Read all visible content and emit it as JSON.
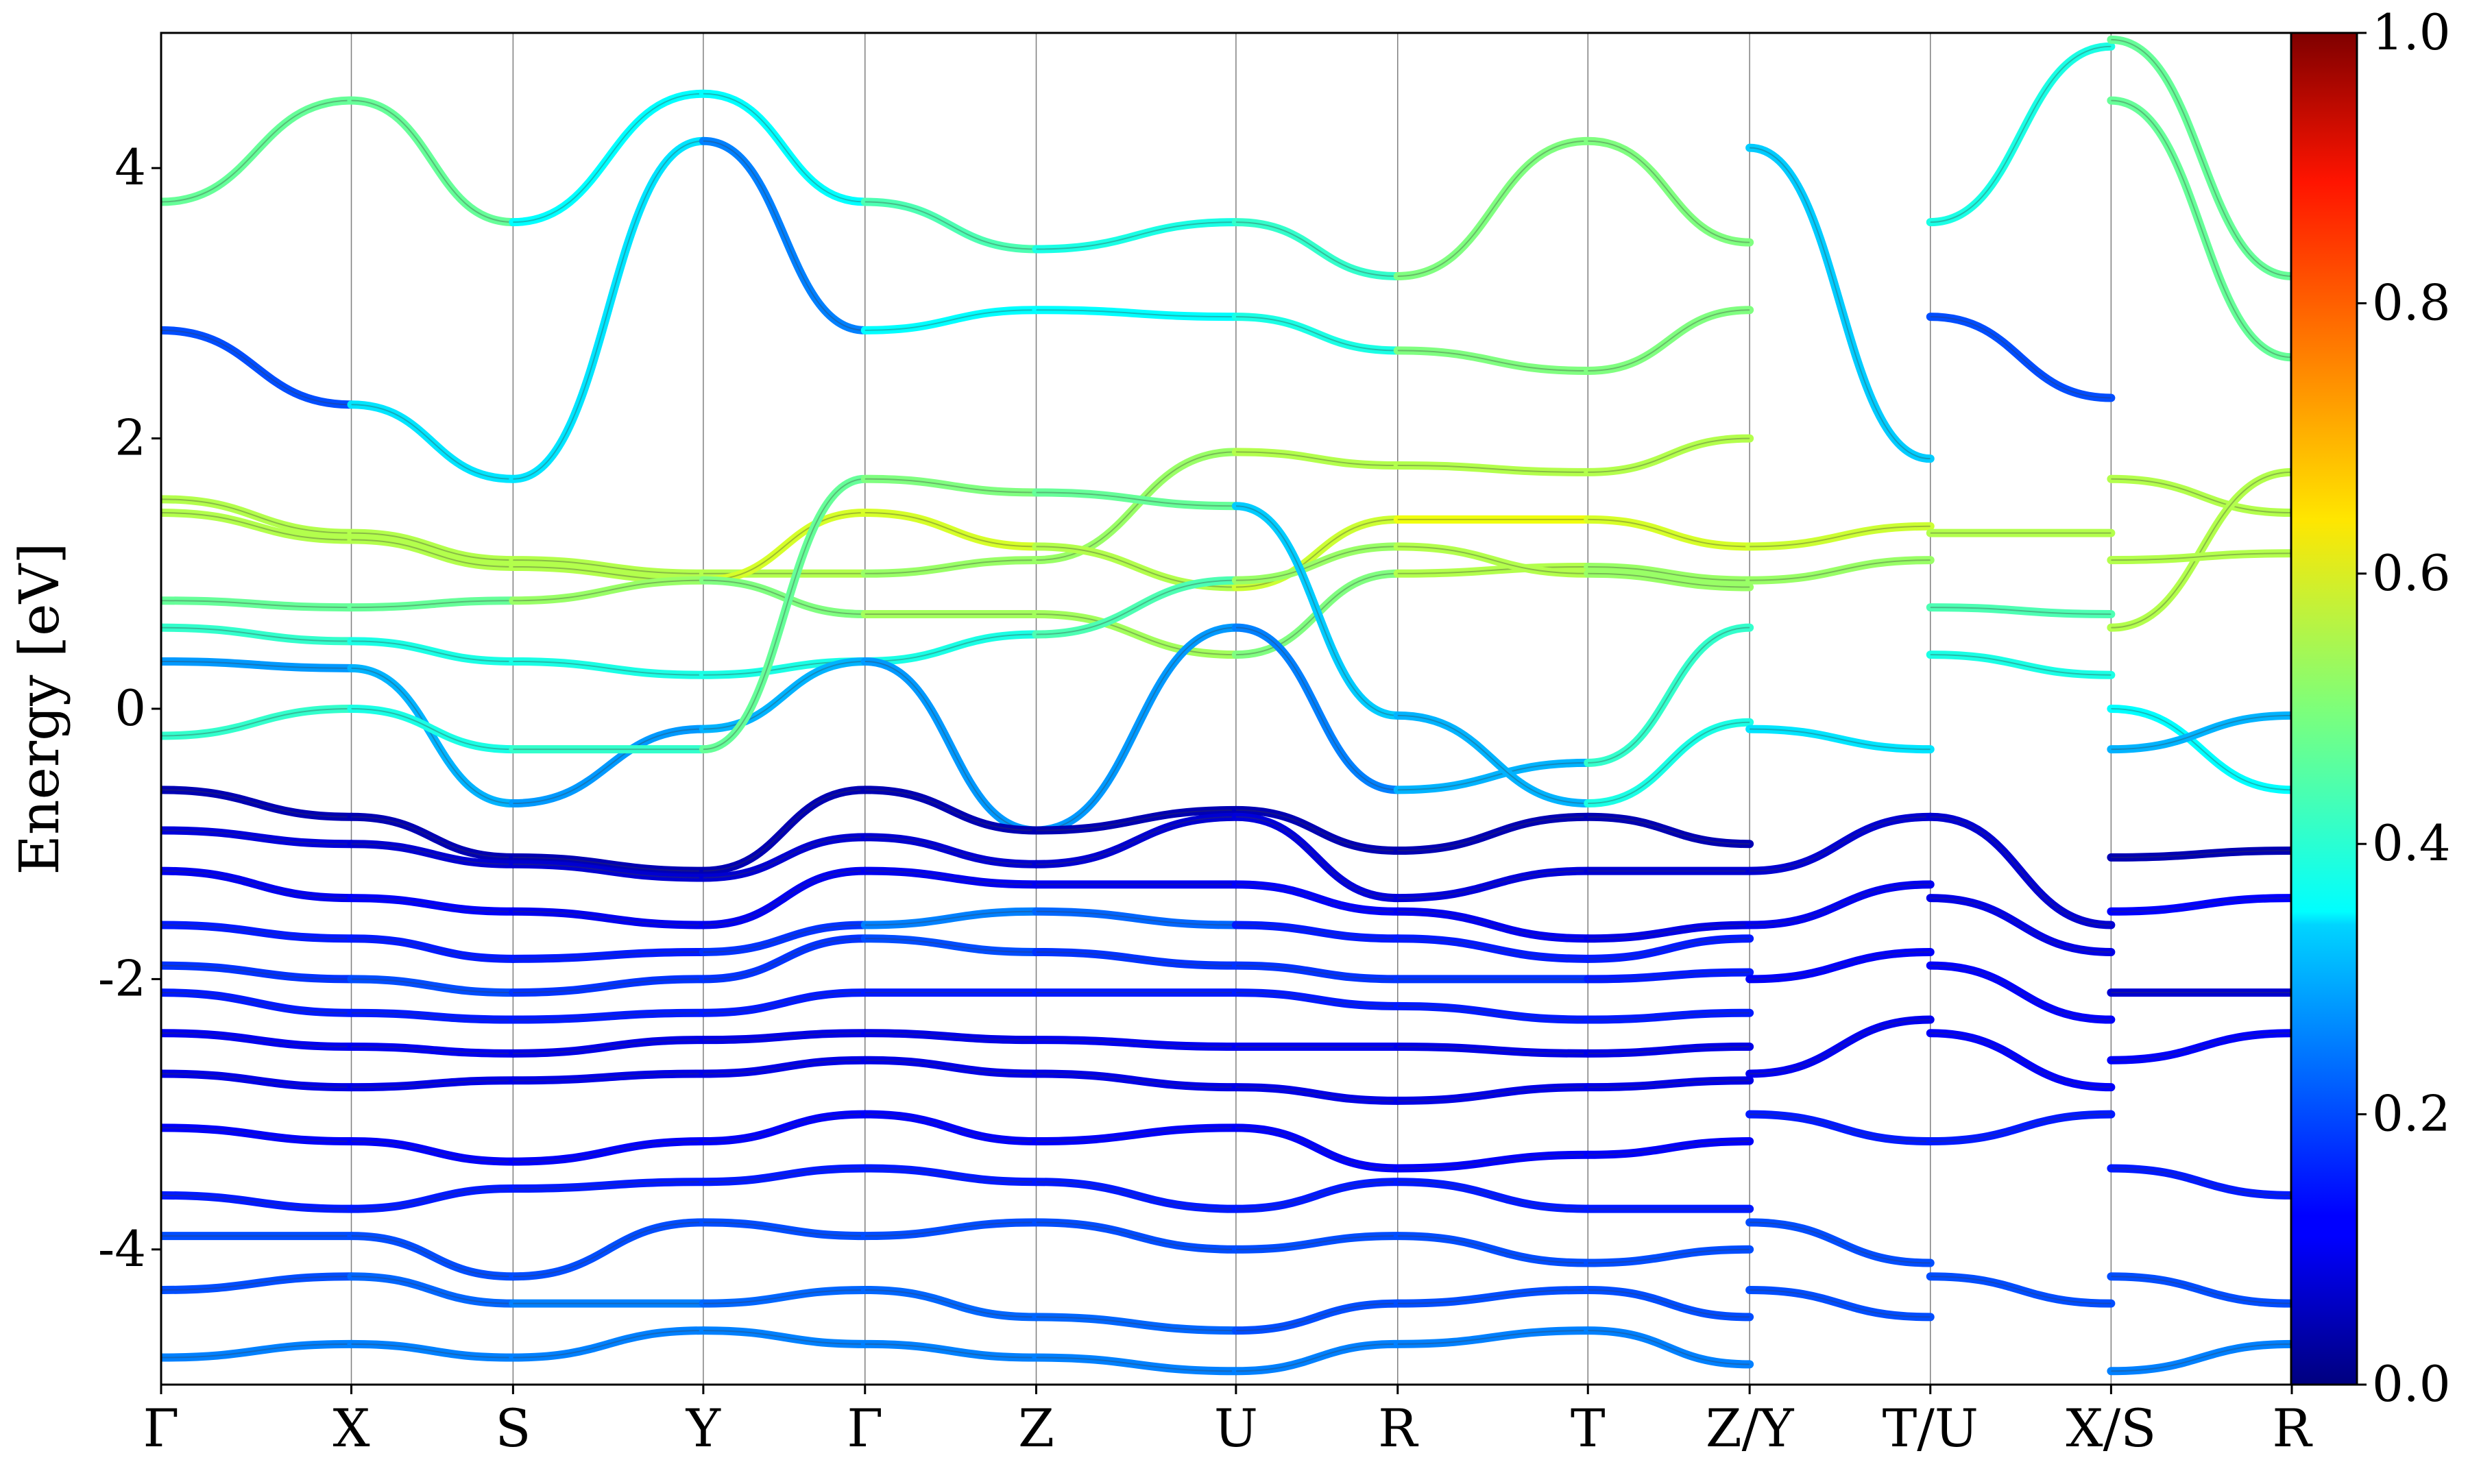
{
  "chart_data": {
    "type": "line",
    "title": "",
    "xlabel": "",
    "ylabel": "Energy [eV]",
    "ylim": [
      -5,
      5
    ],
    "y_ticks": [
      -4,
      -2,
      0,
      2,
      4
    ],
    "y_tick_labels": [
      "-4",
      "-2",
      "0",
      "2",
      "4"
    ],
    "k_points": [
      {
        "label": "Γ",
        "x": 0.0
      },
      {
        "label": "X",
        "x": 1.0
      },
      {
        "label": "S",
        "x": 1.85
      },
      {
        "label": "Y",
        "x": 2.85
      },
      {
        "label": "Γ",
        "x": 3.7
      },
      {
        "label": "Z",
        "x": 4.6
      },
      {
        "label": "U",
        "x": 5.65
      },
      {
        "label": "R",
        "x": 6.5
      },
      {
        "label": "T",
        "x": 7.5
      },
      {
        "label": "Z/Y",
        "x": 8.35
      },
      {
        "label": "T/U",
        "x": 9.3
      },
      {
        "label": "X/S",
        "x": 10.25
      },
      {
        "label": "R",
        "x": 11.2
      }
    ],
    "discontinuities": [
      8.35,
      9.3,
      10.25
    ],
    "colorbar": {
      "min": 0.0,
      "max": 1.0,
      "ticks": [
        0.0,
        0.2,
        0.4,
        0.6,
        0.8,
        1.0
      ],
      "tick_labels": [
        "0.0",
        "0.2",
        "0.4",
        "0.6",
        "0.8",
        "1.0"
      ],
      "colormap": "jet"
    },
    "grid": false,
    "band_width_note": "",
    "series": [
      {
        "x": [
          0,
          1,
          1.85,
          2.85,
          3.7,
          4.6,
          5.65,
          6.5,
          7.5,
          8.35
        ],
        "y": [
          1.55,
          1.3,
          1.1,
          1.0,
          1.0,
          1.1,
          1.9,
          1.8,
          1.75,
          2.0
        ],
        "w": [
          0.55,
          0.55,
          0.55,
          0.55,
          0.55,
          0.5,
          0.55,
          0.55,
          0.55,
          0.55
        ]
      },
      {
        "x": [
          0,
          1,
          1.85,
          2.85,
          3.7,
          4.6,
          5.65,
          6.5,
          7.5,
          8.35
        ],
        "y": [
          1.45,
          1.25,
          1.05,
          0.95,
          1.45,
          1.2,
          0.9,
          1.4,
          1.4,
          1.2
        ],
        "w": [
          0.55,
          0.55,
          0.55,
          0.55,
          0.62,
          0.55,
          0.55,
          0.6,
          0.62,
          0.55
        ]
      },
      {
        "x": [
          0,
          1,
          1.85,
          2.85,
          3.7,
          4.6,
          5.65,
          6.5,
          7.5,
          8.35
        ],
        "y": [
          0.8,
          0.75,
          0.8,
          0.95,
          0.7,
          0.7,
          0.4,
          1.0,
          1.05,
          0.95
        ],
        "w": [
          0.5,
          0.45,
          0.5,
          0.55,
          0.45,
          0.62,
          0.45,
          0.55,
          0.55,
          0.5
        ]
      },
      {
        "x": [
          0,
          1,
          1.85,
          2.85,
          3.7,
          4.6,
          5.65,
          6.5,
          7.5,
          8.35
        ],
        "y": [
          0.6,
          0.5,
          0.35,
          0.25,
          0.35,
          0.55,
          0.95,
          1.2,
          1.0,
          0.9
        ],
        "w": [
          0.45,
          0.4,
          0.4,
          0.4,
          0.4,
          0.4,
          0.5,
          0.55,
          0.55,
          0.5
        ]
      },
      {
        "x": [
          0,
          1,
          1.85,
          2.85,
          3.7,
          4.6,
          5.65,
          6.5,
          7.5,
          8.35
        ],
        "y": [
          0.35,
          0.3,
          -0.7,
          -0.15,
          0.35,
          -0.9,
          0.6,
          -0.6,
          -0.4,
          0.6
        ],
        "w": [
          0.2,
          0.35,
          0.25,
          0.3,
          0.3,
          0.25,
          0.3,
          0.2,
          0.4,
          0.45
        ]
      },
      {
        "x": [
          0,
          1,
          1.85,
          2.85,
          3.7,
          4.6,
          5.65,
          6.5,
          7.5,
          8.35
        ],
        "y": [
          -0.2,
          0.0,
          -0.3,
          -0.3,
          1.7,
          1.6,
          1.5,
          -0.05,
          -0.7,
          -0.1
        ],
        "w": [
          0.45,
          0.4,
          0.4,
          0.45,
          0.5,
          0.5,
          0.45,
          0.2,
          0.4,
          0.4
        ]
      },
      {
        "x": [
          0,
          1,
          1.85,
          2.85,
          3.7,
          4.6,
          5.65,
          6.5,
          7.5,
          8.35
        ],
        "y": [
          -0.6,
          -0.8,
          -1.1,
          -1.2,
          -0.6,
          -0.9,
          -0.75,
          -1.05,
          -0.8,
          -1.0
        ],
        "w": [
          0.05,
          0.05,
          0.05,
          0.05,
          0.05,
          0.05,
          0.05,
          0.05,
          0.05,
          0.05
        ]
      },
      {
        "x": [
          0,
          1,
          1.85,
          2.85,
          3.7,
          4.6,
          5.65,
          6.5,
          7.5,
          8.35
        ],
        "y": [
          -0.9,
          -1.0,
          -1.15,
          -1.25,
          -0.95,
          -1.15,
          -0.8,
          -1.4,
          -1.2,
          -1.2
        ],
        "w": [
          0.1,
          0.08,
          0.08,
          0.08,
          0.08,
          0.08,
          0.08,
          0.1,
          0.08,
          0.08
        ]
      },
      {
        "x": [
          0,
          1,
          1.85,
          2.85,
          3.7,
          4.6,
          5.65,
          6.5,
          7.5,
          8.35
        ],
        "y": [
          -1.2,
          -1.4,
          -1.5,
          -1.6,
          -1.2,
          -1.3,
          -1.3,
          -1.5,
          -1.7,
          -1.6
        ],
        "w": [
          0.1,
          0.12,
          0.12,
          0.1,
          0.12,
          0.1,
          0.12,
          0.12,
          0.1,
          0.1
        ]
      },
      {
        "x": [
          0,
          1,
          1.85,
          2.85,
          3.7,
          4.6,
          5.65,
          6.5,
          7.5,
          8.35
        ],
        "y": [
          -1.6,
          -1.7,
          -1.85,
          -1.8,
          -1.6,
          -1.5,
          -1.6,
          -1.7,
          -1.85,
          -1.7
        ],
        "w": [
          0.15,
          0.15,
          0.15,
          0.15,
          0.2,
          0.3,
          0.15,
          0.15,
          0.15,
          0.15
        ]
      },
      {
        "x": [
          0,
          1,
          1.85,
          2.85,
          3.7,
          4.6,
          5.65,
          6.5,
          7.5,
          8.35
        ],
        "y": [
          -1.9,
          -2.0,
          -2.1,
          -2.0,
          -1.7,
          -1.8,
          -1.9,
          -2.0,
          -2.0,
          -1.95
        ],
        "w": [
          0.15,
          0.2,
          0.2,
          0.15,
          0.2,
          0.2,
          0.15,
          0.2,
          0.15,
          0.15
        ]
      },
      {
        "x": [
          0,
          1,
          1.85,
          2.85,
          3.7,
          4.6,
          5.65,
          6.5,
          7.5,
          8.35
        ],
        "y": [
          -2.1,
          -2.25,
          -2.3,
          -2.25,
          -2.1,
          -2.1,
          -2.1,
          -2.2,
          -2.3,
          -2.25
        ],
        "w": [
          0.15,
          0.15,
          0.15,
          0.15,
          0.15,
          0.15,
          0.15,
          0.15,
          0.15,
          0.15
        ]
      },
      {
        "x": [
          0,
          1,
          1.85,
          2.85,
          3.7,
          4.6,
          5.65,
          6.5,
          7.5,
          8.35
        ],
        "y": [
          -2.4,
          -2.5,
          -2.55,
          -2.45,
          -2.4,
          -2.45,
          -2.5,
          -2.5,
          -2.55,
          -2.5
        ],
        "w": [
          0.1,
          0.12,
          0.1,
          0.1,
          0.1,
          0.1,
          0.12,
          0.1,
          0.1,
          0.1
        ]
      },
      {
        "x": [
          0,
          1,
          1.85,
          2.85,
          3.7,
          4.6,
          5.65,
          6.5,
          7.5,
          8.35
        ],
        "y": [
          -2.7,
          -2.8,
          -2.75,
          -2.7,
          -2.6,
          -2.7,
          -2.8,
          -2.9,
          -2.8,
          -2.75
        ],
        "w": [
          0.1,
          0.1,
          0.1,
          0.1,
          0.1,
          0.1,
          0.1,
          0.1,
          0.1,
          0.1
        ]
      },
      {
        "x": [
          0,
          1,
          1.85,
          2.85,
          3.7,
          4.6,
          5.65,
          6.5,
          7.5,
          8.35
        ],
        "y": [
          -3.1,
          -3.2,
          -3.35,
          -3.2,
          -3.0,
          -3.2,
          -3.1,
          -3.4,
          -3.3,
          -3.2
        ],
        "w": [
          0.12,
          0.12,
          0.12,
          0.12,
          0.12,
          0.12,
          0.12,
          0.12,
          0.12,
          0.12
        ]
      },
      {
        "x": [
          0,
          1,
          1.85,
          2.85,
          3.7,
          4.6,
          5.65,
          6.5,
          7.5,
          8.35
        ],
        "y": [
          -3.6,
          -3.7,
          -3.55,
          -3.5,
          -3.4,
          -3.5,
          -3.7,
          -3.5,
          -3.7,
          -3.7
        ],
        "w": [
          0.15,
          0.15,
          0.15,
          0.15,
          0.15,
          0.15,
          0.15,
          0.15,
          0.15,
          0.15
        ]
      },
      {
        "x": [
          0,
          1,
          1.85,
          2.85,
          3.7,
          4.6,
          5.65,
          6.5,
          7.5,
          8.35
        ],
        "y": [
          -3.9,
          -3.9,
          -4.2,
          -3.8,
          -3.9,
          -3.8,
          -4.0,
          -3.9,
          -4.1,
          -4.0
        ],
        "w": [
          0.2,
          0.2,
          0.2,
          0.2,
          0.2,
          0.2,
          0.2,
          0.2,
          0.2,
          0.2
        ]
      },
      {
        "x": [
          0,
          1,
          1.85,
          2.85,
          3.7,
          4.6,
          5.65,
          6.5,
          7.5,
          8.35
        ],
        "y": [
          -4.3,
          -4.2,
          -4.4,
          -4.4,
          -4.3,
          -4.5,
          -4.6,
          -4.4,
          -4.3,
          -4.5
        ],
        "w": [
          0.2,
          0.2,
          0.25,
          0.25,
          0.2,
          0.25,
          0.2,
          0.2,
          0.2,
          0.2
        ]
      },
      {
        "x": [
          0,
          1,
          1.85,
          2.85,
          3.7,
          4.6,
          5.65,
          6.5,
          7.5,
          8.35
        ],
        "y": [
          -4.8,
          -4.7,
          -4.8,
          -4.6,
          -4.7,
          -4.8,
          -4.9,
          -4.7,
          -4.6,
          -4.85
        ],
        "w": [
          0.25,
          0.25,
          0.25,
          0.25,
          0.25,
          0.25,
          0.25,
          0.25,
          0.25,
          0.25
        ]
      },
      {
        "x": [
          0,
          1,
          1.85,
          2.85,
          3.7,
          4.6,
          5.65,
          6.5,
          7.5,
          8.35
        ],
        "y": [
          2.8,
          2.25,
          1.7,
          4.2,
          2.8,
          2.95,
          2.9,
          2.65,
          2.5,
          2.95
        ],
        "w": [
          0.2,
          0.2,
          0.5,
          0.2,
          0.3,
          0.45,
          0.3,
          0.5,
          0.5,
          0.5
        ]
      },
      {
        "x": [
          0,
          1,
          1.85,
          2.85,
          3.7,
          4.6,
          5.65,
          6.5,
          7.5,
          8.35
        ],
        "y": [
          3.75,
          4.5,
          3.6,
          4.55,
          3.75,
          3.4,
          3.6,
          3.2,
          4.2,
          3.45
        ],
        "w": [
          0.45,
          0.5,
          0.45,
          0.3,
          0.45,
          0.45,
          0.35,
          0.5,
          0.5,
          0.5
        ]
      },
      {
        "x": [
          8.35,
          9.3
        ],
        "y": [
          4.15,
          1.85
        ],
        "w": [
          0.15,
          0.5
        ]
      },
      {
        "x": [
          8.35,
          9.3
        ],
        "y": [
          1.2,
          1.35
        ],
        "w": [
          0.55,
          0.6
        ]
      },
      {
        "x": [
          8.35,
          9.3
        ],
        "y": [
          0.95,
          1.1
        ],
        "w": [
          0.5,
          0.55
        ]
      },
      {
        "x": [
          8.35,
          9.3
        ],
        "y": [
          -0.15,
          -0.3
        ],
        "w": [
          0.4,
          0.3
        ]
      },
      {
        "x": [
          8.35,
          9.3
        ],
        "y": [
          -1.2,
          -0.8
        ],
        "w": [
          0.08,
          0.08
        ]
      },
      {
        "x": [
          8.35,
          9.3
        ],
        "y": [
          -1.6,
          -1.3
        ],
        "w": [
          0.12,
          0.1
        ]
      },
      {
        "x": [
          8.35,
          9.3
        ],
        "y": [
          -2.0,
          -1.8
        ],
        "w": [
          0.12,
          0.12
        ]
      },
      {
        "x": [
          8.35,
          9.3
        ],
        "y": [
          -2.7,
          -2.3
        ],
        "w": [
          0.1,
          0.12
        ]
      },
      {
        "x": [
          8.35,
          9.3
        ],
        "y": [
          -3.0,
          -3.2
        ],
        "w": [
          0.15,
          0.15
        ]
      },
      {
        "x": [
          8.35,
          9.3
        ],
        "y": [
          -3.8,
          -4.1
        ],
        "w": [
          0.2,
          0.2
        ]
      },
      {
        "x": [
          8.35,
          9.3
        ],
        "y": [
          -4.3,
          -4.5
        ],
        "w": [
          0.2,
          0.2
        ]
      },
      {
        "x": [
          9.3,
          10.25
        ],
        "y": [
          3.6,
          4.9
        ],
        "w": [
          0.4,
          0.4
        ]
      },
      {
        "x": [
          9.3,
          10.25
        ],
        "y": [
          2.9,
          2.3
        ],
        "w": [
          0.2,
          0.2
        ]
      },
      {
        "x": [
          9.3,
          10.25
        ],
        "y": [
          1.3,
          1.3
        ],
        "w": [
          0.55,
          0.55
        ]
      },
      {
        "x": [
          9.3,
          10.25
        ],
        "y": [
          0.75,
          0.7
        ],
        "w": [
          0.45,
          0.45
        ]
      },
      {
        "x": [
          9.3,
          10.25
        ],
        "y": [
          0.4,
          0.25
        ],
        "w": [
          0.4,
          0.4
        ]
      },
      {
        "x": [
          9.3,
          10.25
        ],
        "y": [
          -0.8,
          -1.6
        ],
        "w": [
          0.08,
          0.08
        ]
      },
      {
        "x": [
          9.3,
          10.25
        ],
        "y": [
          -1.4,
          -1.8
        ],
        "w": [
          0.1,
          0.1
        ]
      },
      {
        "x": [
          9.3,
          10.25
        ],
        "y": [
          -1.9,
          -2.3
        ],
        "w": [
          0.12,
          0.12
        ]
      },
      {
        "x": [
          9.3,
          10.25
        ],
        "y": [
          -2.4,
          -2.8
        ],
        "w": [
          0.12,
          0.12
        ]
      },
      {
        "x": [
          9.3,
          10.25
        ],
        "y": [
          -3.2,
          -3.0
        ],
        "w": [
          0.15,
          0.15
        ]
      },
      {
        "x": [
          9.3,
          10.25
        ],
        "y": [
          -4.2,
          -4.4
        ],
        "w": [
          0.2,
          0.2
        ]
      },
      {
        "x": [
          10.25,
          11.2
        ],
        "y": [
          4.95,
          3.2
        ],
        "w": [
          0.4,
          0.55
        ]
      },
      {
        "x": [
          10.25,
          11.2
        ],
        "y": [
          4.5,
          2.6
        ],
        "w": [
          0.4,
          0.55
        ]
      },
      {
        "x": [
          10.25,
          11.2
        ],
        "y": [
          1.7,
          1.45
        ],
        "w": [
          0.55,
          0.55
        ]
      },
      {
        "x": [
          10.25,
          11.2
        ],
        "y": [
          0.6,
          1.75
        ],
        "w": [
          0.55,
          0.55
        ]
      },
      {
        "x": [
          10.25,
          11.2
        ],
        "y": [
          1.1,
          1.15
        ],
        "w": [
          0.55,
          0.55
        ]
      },
      {
        "x": [
          10.25,
          11.2
        ],
        "y": [
          0.0,
          -0.6
        ],
        "w": [
          0.4,
          0.35
        ]
      },
      {
        "x": [
          10.25,
          11.2
        ],
        "y": [
          -0.3,
          -0.05
        ],
        "w": [
          0.4,
          0.2
        ]
      },
      {
        "x": [
          10.25,
          11.2
        ],
        "y": [
          -1.1,
          -1.05
        ],
        "w": [
          0.05,
          0.05
        ]
      },
      {
        "x": [
          10.25,
          11.2
        ],
        "y": [
          -1.5,
          -1.4
        ],
        "w": [
          0.1,
          0.15
        ]
      },
      {
        "x": [
          10.25,
          11.2
        ],
        "y": [
          -2.1,
          -2.1
        ],
        "w": [
          0.08,
          0.08
        ]
      },
      {
        "x": [
          10.25,
          11.2
        ],
        "y": [
          -2.6,
          -2.4
        ],
        "w": [
          0.12,
          0.12
        ]
      },
      {
        "x": [
          10.25,
          11.2
        ],
        "y": [
          -3.4,
          -3.6
        ],
        "w": [
          0.15,
          0.15
        ]
      },
      {
        "x": [
          10.25,
          11.2
        ],
        "y": [
          -4.2,
          -4.4
        ],
        "w": [
          0.2,
          0.2
        ]
      },
      {
        "x": [
          10.25,
          11.2
        ],
        "y": [
          -4.9,
          -4.7
        ],
        "w": [
          0.25,
          0.25
        ]
      }
    ]
  }
}
